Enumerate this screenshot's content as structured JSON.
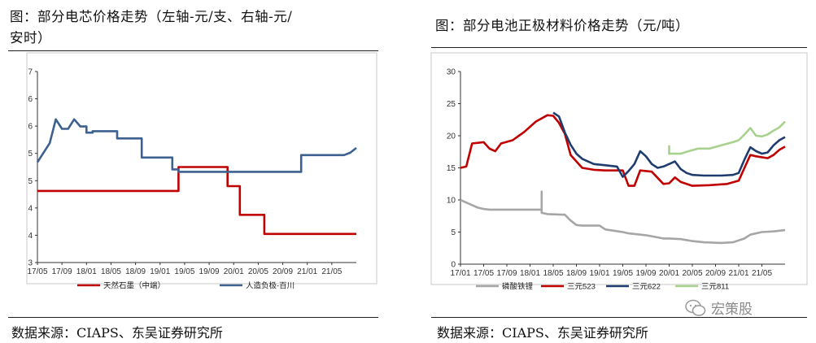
{
  "left_panel": {
    "title_line1": "图：部分电芯价格走势（左轴-元/支、右轴-元/",
    "title_line2": "安时）",
    "source": "数据来源：CIAPS、东吴证券研究所"
  },
  "right_panel": {
    "title": "图：部分电池正极材料价格走势（元/吨）",
    "source": "数据来源：CIAPS、东吴证券研究所"
  },
  "watermark": {
    "text": "宏策股",
    "icon": "wechat-icon"
  },
  "chart_data": [
    {
      "type": "line",
      "title": "",
      "x_ticks": [
        "17/05",
        "17/09",
        "18/01",
        "18/05",
        "18/09",
        "19/01",
        "19/05",
        "19/09",
        "20/01",
        "20/05",
        "20/09",
        "21/01",
        "21/05"
      ],
      "y_ticks": [
        "3",
        "4",
        "4",
        "5",
        "5",
        "6",
        "6",
        "7"
      ],
      "ylim": [
        3,
        7
      ],
      "xlim": [
        "2017-05",
        "2021-09"
      ],
      "grid": false,
      "legend_position": "bottom",
      "series": [
        {
          "name": "天然石墨（中端）",
          "color": "#c00000",
          "points": [
            [
              "2017-05",
              4.5
            ],
            [
              "2019-04",
              4.5
            ],
            [
              "2019-04",
              5.0
            ],
            [
              "2019-05",
              5.0
            ],
            [
              "2019-05",
              5.0
            ],
            [
              "2019-12",
              5.0
            ],
            [
              "2019-12",
              4.6
            ],
            [
              "2020-02",
              4.6
            ],
            [
              "2020-02",
              4.0
            ],
            [
              "2020-06",
              4.0
            ],
            [
              "2020-06",
              3.6
            ],
            [
              "2021-09",
              3.6
            ]
          ]
        },
        {
          "name": "人造负极-百川",
          "color": "#3c6090",
          "points": [
            [
              "2017-05",
              5.1
            ],
            [
              "2017-06",
              5.3
            ],
            [
              "2017-07",
              5.5
            ],
            [
              "2017-08",
              6.0
            ],
            [
              "2017-09",
              5.8
            ],
            [
              "2017-10",
              5.8
            ],
            [
              "2017-11",
              6.0
            ],
            [
              "2017-12",
              5.85
            ],
            [
              "2018-01",
              5.85
            ],
            [
              "2018-01",
              5.72
            ],
            [
              "2018-02",
              5.72
            ],
            [
              "2018-02",
              5.75
            ],
            [
              "2018-06",
              5.75
            ],
            [
              "2018-06",
              5.6
            ],
            [
              "2018-10",
              5.6
            ],
            [
              "2018-10",
              5.2
            ],
            [
              "2019-03",
              5.2
            ],
            [
              "2019-03",
              4.95
            ],
            [
              "2019-04",
              4.95
            ],
            [
              "2019-04",
              4.9
            ],
            [
              "2020-12",
              4.9
            ],
            [
              "2020-12",
              5.25
            ],
            [
              "2021-07",
              5.25
            ],
            [
              "2021-08",
              5.3
            ],
            [
              "2021-09",
              5.4
            ]
          ]
        }
      ]
    },
    {
      "type": "line",
      "title": "",
      "x_ticks": [
        "17/01",
        "17/05",
        "17/09",
        "18/01",
        "18/05",
        "18/09",
        "19/01",
        "19/05",
        "19/09",
        "20/01",
        "20/05",
        "20/09",
        "21/01",
        "21/05"
      ],
      "y_ticks": [
        "0",
        "5",
        "10",
        "15",
        "20",
        "25",
        "30"
      ],
      "ylim": [
        0,
        30
      ],
      "xlim": [
        "2017-01",
        "2021-09"
      ],
      "grid": false,
      "legend_position": "bottom",
      "series": [
        {
          "name": "磷酸铁锂",
          "color": "#a6a6a6",
          "points": [
            [
              "2017-01",
              10.0
            ],
            [
              "2017-02",
              9.6
            ],
            [
              "2017-04",
              8.8
            ],
            [
              "2017-05",
              8.6
            ],
            [
              "2017-06",
              8.5
            ],
            [
              "2018-03",
              8.5
            ],
            [
              "2018-03",
              11.3
            ],
            [
              "2018-03",
              8.0
            ],
            [
              "2018-04",
              7.8
            ],
            [
              "2018-07",
              7.7
            ],
            [
              "2018-08",
              6.8
            ],
            [
              "2018-09",
              6.1
            ],
            [
              "2018-10",
              6.0
            ],
            [
              "2019-01",
              6.0
            ],
            [
              "2019-02",
              5.4
            ],
            [
              "2019-05",
              5.0
            ],
            [
              "2019-06",
              4.8
            ],
            [
              "2019-09",
              4.5
            ],
            [
              "2019-12",
              4.0
            ],
            [
              "2020-01",
              4.0
            ],
            [
              "2020-03",
              3.9
            ],
            [
              "2020-05",
              3.6
            ],
            [
              "2020-07",
              3.4
            ],
            [
              "2020-10",
              3.3
            ],
            [
              "2020-12",
              3.4
            ],
            [
              "2021-02",
              4.0
            ],
            [
              "2021-03",
              4.6
            ],
            [
              "2021-05",
              5.0
            ],
            [
              "2021-07",
              5.1
            ],
            [
              "2021-09",
              5.3
            ]
          ]
        },
        {
          "name": "三元523",
          "color": "#c00000",
          "points": [
            [
              "2017-01",
              15.0
            ],
            [
              "2017-02",
              15.2
            ],
            [
              "2017-03",
              18.8
            ],
            [
              "2017-05",
              19.0
            ],
            [
              "2017-06",
              18.0
            ],
            [
              "2017-07",
              17.6
            ],
            [
              "2017-08",
              18.8
            ],
            [
              "2017-10",
              19.3
            ],
            [
              "2017-12",
              20.6
            ],
            [
              "2018-02",
              22.2
            ],
            [
              "2018-04",
              23.2
            ],
            [
              "2018-05",
              23.1
            ],
            [
              "2018-06",
              22.0
            ],
            [
              "2018-07",
              20.3
            ],
            [
              "2018-08",
              17.0
            ],
            [
              "2018-09",
              16.0
            ],
            [
              "2018-10",
              15.0
            ],
            [
              "2018-12",
              14.7
            ],
            [
              "2019-02",
              14.6
            ],
            [
              "2019-05",
              14.6
            ],
            [
              "2019-06",
              12.2
            ],
            [
              "2019-07",
              12.2
            ],
            [
              "2019-08",
              14.6
            ],
            [
              "2019-10",
              14.4
            ],
            [
              "2019-12",
              12.5
            ],
            [
              "2020-01",
              12.6
            ],
            [
              "2020-02",
              13.5
            ],
            [
              "2020-03",
              12.8
            ],
            [
              "2020-05",
              12.2
            ],
            [
              "2020-08",
              12.3
            ],
            [
              "2020-11",
              12.5
            ],
            [
              "2021-01",
              13.0
            ],
            [
              "2021-02",
              15.0
            ],
            [
              "2021-03",
              17.0
            ],
            [
              "2021-04",
              16.8
            ],
            [
              "2021-06",
              16.5
            ],
            [
              "2021-07",
              17.0
            ],
            [
              "2021-08",
              17.8
            ],
            [
              "2021-09",
              18.3
            ]
          ]
        },
        {
          "name": "三元622",
          "color": "#1f3c6e",
          "points": [
            [
              "2018-05",
              23.6
            ],
            [
              "2018-06",
              23.0
            ],
            [
              "2018-07",
              20.5
            ],
            [
              "2018-08",
              18.6
            ],
            [
              "2018-09",
              17.2
            ],
            [
              "2018-10",
              16.4
            ],
            [
              "2018-12",
              15.6
            ],
            [
              "2019-02",
              15.4
            ],
            [
              "2019-04",
              15.2
            ],
            [
              "2019-05",
              13.6
            ],
            [
              "2019-06",
              14.5
            ],
            [
              "2019-07",
              15.6
            ],
            [
              "2019-08",
              17.6
            ],
            [
              "2019-09",
              16.8
            ],
            [
              "2019-10",
              15.6
            ],
            [
              "2019-11",
              15.0
            ],
            [
              "2019-12",
              15.2
            ],
            [
              "2020-01",
              15.6
            ],
            [
              "2020-02",
              16.0
            ],
            [
              "2020-03",
              14.8
            ],
            [
              "2020-04",
              14.2
            ],
            [
              "2020-05",
              13.9
            ],
            [
              "2020-07",
              13.8
            ],
            [
              "2020-10",
              13.8
            ],
            [
              "2020-12",
              13.9
            ],
            [
              "2021-01",
              14.2
            ],
            [
              "2021-02",
              16.3
            ],
            [
              "2021-03",
              18.2
            ],
            [
              "2021-04",
              17.6
            ],
            [
              "2021-05",
              17.2
            ],
            [
              "2021-06",
              17.4
            ],
            [
              "2021-07",
              18.5
            ],
            [
              "2021-08",
              19.3
            ],
            [
              "2021-09",
              19.8
            ]
          ]
        },
        {
          "name": "三元811",
          "color": "#a9d18e",
          "points": [
            [
              "2020-01",
              18.5
            ],
            [
              "2020-01",
              17.2
            ],
            [
              "2020-03",
              17.2
            ],
            [
              "2020-04",
              17.5
            ],
            [
              "2020-06",
              18.0
            ],
            [
              "2020-08",
              18.0
            ],
            [
              "2020-10",
              18.5
            ],
            [
              "2020-12",
              19.0
            ],
            [
              "2021-01",
              19.3
            ],
            [
              "2021-02",
              20.2
            ],
            [
              "2021-03",
              21.2
            ],
            [
              "2021-04",
              20.0
            ],
            [
              "2021-05",
              19.9
            ],
            [
              "2021-06",
              20.2
            ],
            [
              "2021-07",
              20.8
            ],
            [
              "2021-08",
              21.3
            ],
            [
              "2021-09",
              22.2
            ]
          ]
        }
      ]
    }
  ]
}
